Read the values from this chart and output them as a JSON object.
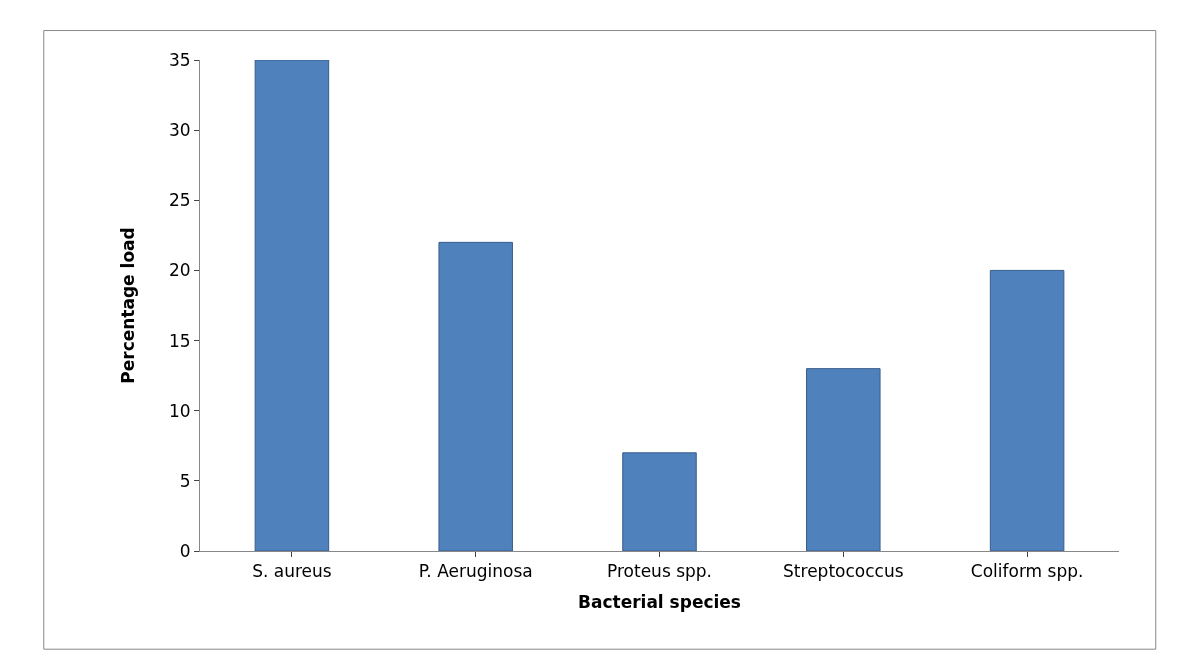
{
  "chart_data": {
    "type": "bar",
    "xlabel": "Bacterial species",
    "ylabel": "Percentage load",
    "categories": [
      "S. aureus",
      "P. Aeruginosa",
      "Proteus spp.",
      "Streptococcus",
      "Coliform spp."
    ],
    "values": [
      35,
      22,
      7,
      13,
      20
    ],
    "color": "#4f81bd",
    "ylim": [
      0,
      35
    ],
    "yticks": [
      0,
      5,
      10,
      15,
      20,
      25,
      30,
      35
    ],
    "legend": false
  }
}
